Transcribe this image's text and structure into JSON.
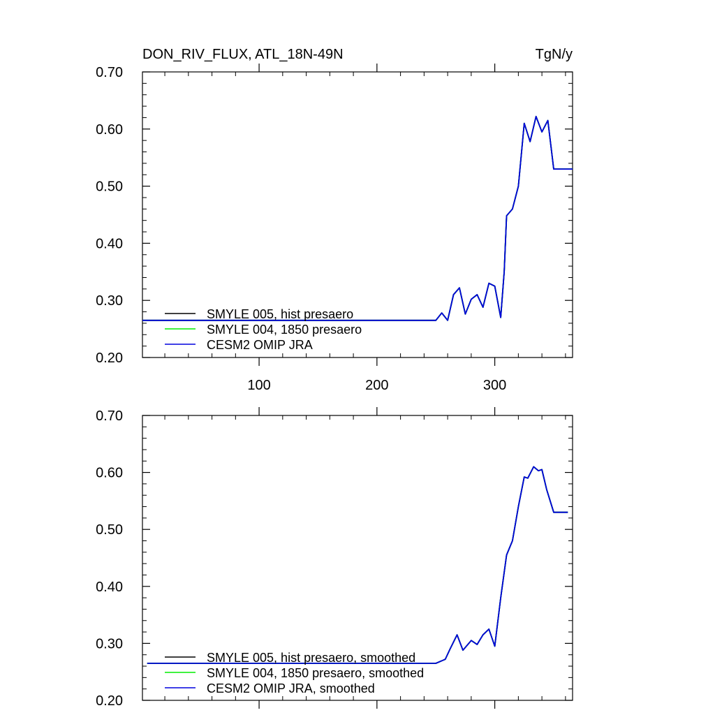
{
  "header": {
    "variable_title": "DON_RIV_FLUX, ATL_18N-49N",
    "units": "TgN/y"
  },
  "colors": {
    "smyle005": "#000000",
    "smyle004": "#00ee00",
    "omip": "#0000dd"
  },
  "chart_data": [
    {
      "type": "line",
      "panel": "raw",
      "xlim": [
        1,
        366
      ],
      "ylim": [
        0.2,
        0.7
      ],
      "xticks": [
        100,
        200,
        300
      ],
      "xtick_labels": [
        "100",
        "200",
        "300"
      ],
      "yticks": [
        0.2,
        0.3,
        0.4,
        0.5,
        0.6,
        0.7
      ],
      "ytick_labels": [
        "0.20",
        "0.30",
        "0.40",
        "0.50",
        "0.60",
        "0.70"
      ],
      "x": [
        1,
        250,
        255,
        260,
        265,
        270,
        275,
        280,
        285,
        290,
        295,
        300,
        305,
        308,
        310,
        315,
        320,
        325,
        330,
        335,
        340,
        345,
        350,
        366
      ],
      "series": [
        {
          "name": "SMYLE 005, hist presaero",
          "color_key": "smyle005",
          "values": [
            0.265,
            0.265,
            0.278,
            0.265,
            0.31,
            0.322,
            0.276,
            0.302,
            0.31,
            0.288,
            0.33,
            0.325,
            0.27,
            0.35,
            0.448,
            0.46,
            0.5,
            0.61,
            0.578,
            0.622,
            0.595,
            0.615,
            0.53,
            0.53
          ]
        },
        {
          "name": "SMYLE 004, 1850 presaero",
          "color_key": "smyle004",
          "values": [
            0.265,
            0.265,
            0.278,
            0.265,
            0.31,
            0.322,
            0.276,
            0.302,
            0.31,
            0.288,
            0.33,
            0.325,
            0.27,
            0.35,
            0.448,
            0.46,
            0.5,
            0.61,
            0.578,
            0.622,
            0.595,
            0.615,
            0.53,
            0.53
          ]
        },
        {
          "name": "CESM2 OMIP JRA",
          "color_key": "omip",
          "values": [
            0.265,
            0.265,
            0.278,
            0.265,
            0.31,
            0.322,
            0.276,
            0.302,
            0.31,
            0.288,
            0.33,
            0.325,
            0.27,
            0.35,
            0.448,
            0.46,
            0.5,
            0.61,
            0.578,
            0.622,
            0.595,
            0.615,
            0.53,
            0.53
          ]
        }
      ],
      "legend_position": "lower-left"
    },
    {
      "type": "line",
      "panel": "smoothed",
      "xlim": [
        1,
        366
      ],
      "ylim": [
        0.2,
        0.7
      ],
      "xticks": [
        100,
        200,
        300
      ],
      "xtick_labels": [],
      "yticks": [
        0.2,
        0.3,
        0.4,
        0.5,
        0.6,
        0.7
      ],
      "ytick_labels": [
        "0.20",
        "0.30",
        "0.40",
        "0.50",
        "0.60",
        "0.70"
      ],
      "x": [
        5,
        250,
        258,
        262,
        268,
        273,
        280,
        285,
        290,
        295,
        300,
        305,
        310,
        315,
        320,
        325,
        328,
        333,
        337,
        340,
        344,
        350,
        362
      ],
      "series": [
        {
          "name": "SMYLE 005, hist presaero, smoothed",
          "color_key": "smyle005",
          "values": [
            0.265,
            0.265,
            0.272,
            0.29,
            0.315,
            0.288,
            0.305,
            0.298,
            0.315,
            0.325,
            0.295,
            0.38,
            0.455,
            0.48,
            0.54,
            0.592,
            0.59,
            0.61,
            0.603,
            0.605,
            0.57,
            0.53,
            0.53
          ]
        },
        {
          "name": "SMYLE 004, 1850 presaero, smoothed",
          "color_key": "smyle004",
          "values": [
            0.265,
            0.265,
            0.272,
            0.29,
            0.315,
            0.288,
            0.305,
            0.298,
            0.315,
            0.325,
            0.295,
            0.38,
            0.455,
            0.48,
            0.54,
            0.592,
            0.59,
            0.61,
            0.603,
            0.605,
            0.57,
            0.53,
            0.53
          ]
        },
        {
          "name": "CESM2 OMIP JRA, smoothed",
          "color_key": "omip",
          "values": [
            0.265,
            0.265,
            0.272,
            0.29,
            0.315,
            0.288,
            0.305,
            0.298,
            0.315,
            0.325,
            0.295,
            0.38,
            0.455,
            0.48,
            0.54,
            0.592,
            0.59,
            0.61,
            0.603,
            0.605,
            0.57,
            0.53,
            0.53
          ]
        }
      ],
      "legend_position": "lower-left"
    }
  ]
}
